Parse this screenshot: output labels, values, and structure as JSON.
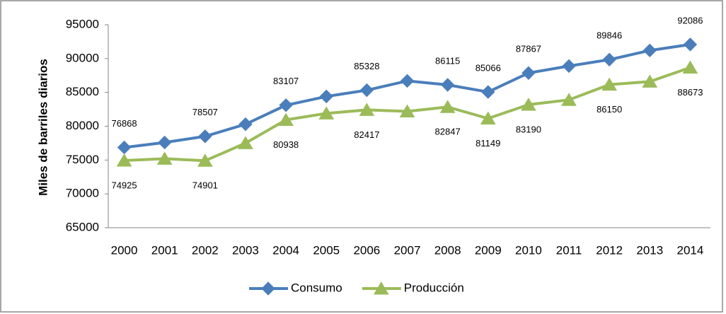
{
  "chart_data": {
    "type": "line",
    "y_label": "Miles de barriles diarios",
    "categories": [
      "2000",
      "2001",
      "2002",
      "2003",
      "2004",
      "2005",
      "2006",
      "2007",
      "2008",
      "2009",
      "2010",
      "2011",
      "2012",
      "2013",
      "2014"
    ],
    "series": [
      {
        "name": "Consumo",
        "color": "#4a7ebb",
        "marker": "diamond",
        "values": [
          76868,
          77600,
          78507,
          80300,
          83107,
          84400,
          85328,
          86700,
          86115,
          85066,
          87867,
          88900,
          89846,
          91200,
          92086
        ],
        "value_labels": [
          "76868",
          null,
          "78507",
          null,
          "83107",
          null,
          "85328",
          null,
          "86115",
          "85066",
          "87867",
          null,
          "89846",
          null,
          "92086"
        ],
        "label_position": "above"
      },
      {
        "name": "Producción",
        "color": "#9bbb59",
        "marker": "triangle",
        "values": [
          74925,
          75200,
          74901,
          77500,
          80938,
          81900,
          82417,
          82200,
          82847,
          81149,
          83190,
          83900,
          86150,
          86600,
          88673
        ],
        "value_labels": [
          "74925",
          null,
          "74901",
          null,
          "80938",
          null,
          "82417",
          null,
          "82847",
          "81149",
          "83190",
          null,
          "86150",
          null,
          "88673"
        ],
        "label_position": "below"
      }
    ],
    "ylim": [
      65000,
      95000
    ],
    "yticks": [
      65000,
      70000,
      75000,
      80000,
      85000,
      90000,
      95000
    ],
    "grid": false,
    "legend": "bottom"
  }
}
